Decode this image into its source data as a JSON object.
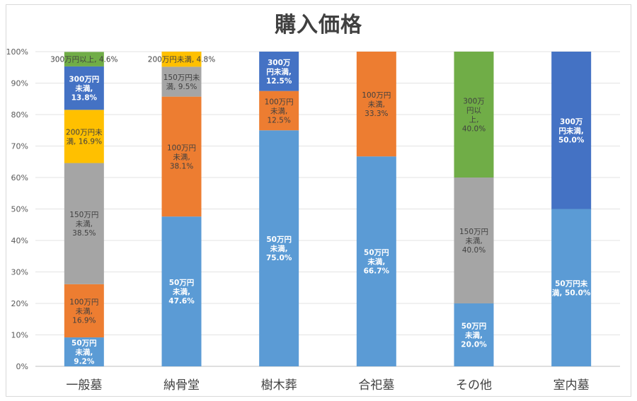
{
  "chart_data": {
    "type": "bar",
    "stacked": "percent",
    "title": "購入価格",
    "categories": [
      "一般墓",
      "納骨堂",
      "樹木葬",
      "合祀墓",
      "その他",
      "室内墓"
    ],
    "ylim": [
      0,
      100
    ],
    "yticks": [
      "0%",
      "10%",
      "20%",
      "30%",
      "40%",
      "50%",
      "60%",
      "70%",
      "80%",
      "90%",
      "100%"
    ],
    "grid": true,
    "legend": "none",
    "series": [
      {
        "key": "s50",
        "color": "#5b9bd5",
        "text_color": "#ffffff",
        "bold": true,
        "values": [
          9.2,
          47.6,
          75.0,
          66.7,
          20.0,
          50.0
        ],
        "labels": [
          [
            "50万円",
            "未満,",
            "9.2%"
          ],
          [
            "50万円",
            "未満,",
            "47.6%"
          ],
          [
            "50万円",
            "未満,",
            "75.0%"
          ],
          [
            "50万円",
            "未満,",
            "66.7%"
          ],
          [
            "50万円",
            "未満,",
            "20.0%"
          ],
          [
            "50万円未",
            "満, 50.0%"
          ]
        ]
      },
      {
        "key": "s100",
        "color": "#ed7d31",
        "text_color": "#404040",
        "bold": false,
        "values": [
          16.9,
          38.1,
          12.5,
          33.3,
          0,
          0
        ],
        "labels": [
          [
            "100万円",
            "未満,",
            "16.9%"
          ],
          [
            "100万円",
            "未満,",
            "38.1%"
          ],
          [
            "100万円",
            "未満,",
            "12.5%"
          ],
          [
            "100万円",
            "未満,",
            "33.3%"
          ],
          null,
          null
        ]
      },
      {
        "key": "s150",
        "color": "#a5a5a5",
        "text_color": "#404040",
        "bold": false,
        "values": [
          38.5,
          9.5,
          0,
          0,
          40.0,
          0
        ],
        "labels": [
          [
            "150万円",
            "未満,",
            "38.5%"
          ],
          [
            "150万円未",
            "満, 9.5%"
          ],
          null,
          null,
          [
            "150万円",
            "未満,",
            "40.0%"
          ],
          null
        ]
      },
      {
        "key": "s200",
        "color": "#ffc000",
        "text_color": "#404040",
        "bold": false,
        "values": [
          16.9,
          4.8,
          0,
          0,
          0,
          0
        ],
        "labels": [
          [
            "200万円未",
            "満, 16.9%"
          ],
          [
            "200万円未満, 4.8%"
          ],
          null,
          null,
          null,
          null
        ]
      },
      {
        "key": "s300u",
        "color": "#4472c4",
        "text_color": "#ffffff",
        "bold": true,
        "values": [
          13.8,
          0,
          12.5,
          0,
          0,
          50.0
        ],
        "labels": [
          [
            "300万円",
            "未満,",
            "13.8%"
          ],
          null,
          [
            "300万",
            "円未満,",
            "12.5%"
          ],
          null,
          null,
          [
            "300万",
            "円未満,",
            "50.0%"
          ]
        ]
      },
      {
        "key": "s300o",
        "color": "#70ad47",
        "text_color": "#404040",
        "bold": false,
        "values": [
          4.6,
          0,
          0,
          0,
          40.0,
          0
        ],
        "labels": [
          [
            "300万円以上, 4.6%"
          ],
          null,
          null,
          null,
          [
            "300万",
            "円以",
            "上,",
            "40.0%"
          ],
          null
        ]
      }
    ]
  }
}
